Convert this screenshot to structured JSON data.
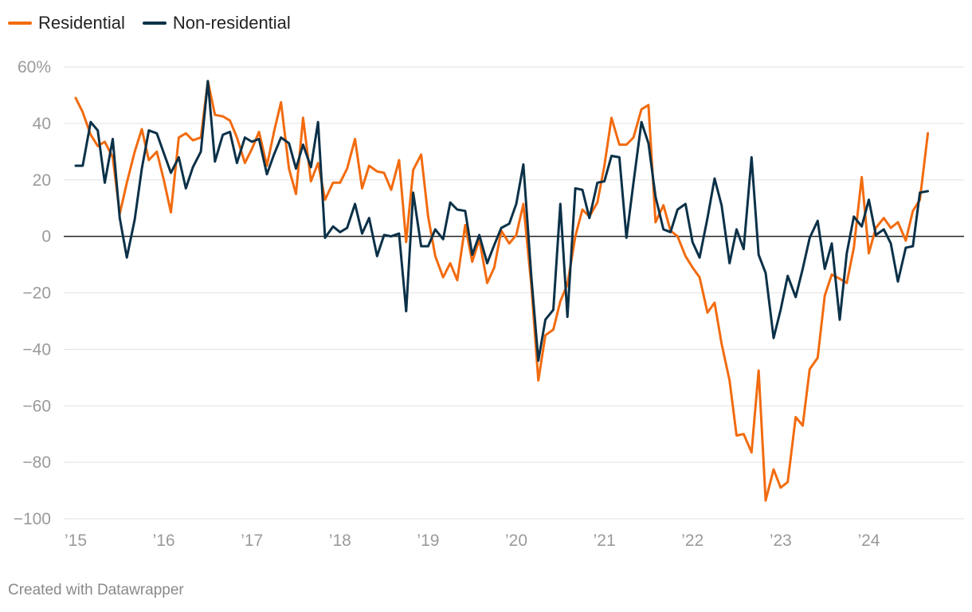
{
  "chart_data": {
    "type": "line",
    "title": "",
    "xlabel": "",
    "ylabel": "",
    "ylim": [
      -100,
      60
    ],
    "xlim": [
      2015,
      2024.9
    ],
    "y_ticks": [
      60,
      40,
      20,
      0,
      -20,
      -40,
      -60,
      -80,
      -100
    ],
    "y_tick_labels": [
      "60%",
      "40",
      "20",
      "0",
      "−20",
      "−40",
      "−60",
      "−80",
      "−100"
    ],
    "x_ticks": [
      2015,
      2016,
      2017,
      2018,
      2019,
      2020,
      2021,
      2022,
      2023,
      2024
    ],
    "x_tick_labels": [
      "’15",
      "’16",
      "’17",
      "’18",
      "’19",
      "’20",
      "’21",
      "’22",
      "’23",
      "’24"
    ],
    "grid": true,
    "legend": "top-left",
    "series": [
      {
        "name": "Residential",
        "color": "#f26b0f",
        "points": [
          [
            2015.0,
            49
          ],
          [
            2015.08,
            44
          ],
          [
            2015.17,
            36
          ],
          [
            2015.25,
            32
          ],
          [
            2015.33,
            33.5
          ],
          [
            2015.42,
            28
          ],
          [
            2015.5,
            8
          ],
          [
            2015.58,
            19
          ],
          [
            2015.67,
            30
          ],
          [
            2015.75,
            38
          ],
          [
            2015.83,
            27
          ],
          [
            2015.92,
            30
          ],
          [
            2016.0,
            20
          ],
          [
            2016.08,
            8.5
          ],
          [
            2016.17,
            35
          ],
          [
            2016.25,
            36.5
          ],
          [
            2016.33,
            34
          ],
          [
            2016.42,
            35
          ],
          [
            2016.5,
            55
          ],
          [
            2016.58,
            43
          ],
          [
            2016.67,
            42.5
          ],
          [
            2016.75,
            41
          ],
          [
            2016.83,
            35
          ],
          [
            2016.92,
            26
          ],
          [
            2017.0,
            31
          ],
          [
            2017.08,
            37
          ],
          [
            2017.17,
            25
          ],
          [
            2017.25,
            37
          ],
          [
            2017.33,
            47.5
          ],
          [
            2017.42,
            24
          ],
          [
            2017.5,
            15
          ],
          [
            2017.58,
            42
          ],
          [
            2017.67,
            19.5
          ],
          [
            2017.75,
            26
          ],
          [
            2017.83,
            13
          ],
          [
            2017.92,
            19
          ],
          [
            2018.0,
            19
          ],
          [
            2018.08,
            24
          ],
          [
            2018.17,
            34.5
          ],
          [
            2018.25,
            17
          ],
          [
            2018.33,
            25
          ],
          [
            2018.42,
            23
          ],
          [
            2018.5,
            22.5
          ],
          [
            2018.58,
            16.5
          ],
          [
            2018.67,
            27
          ],
          [
            2018.75,
            -2
          ],
          [
            2018.83,
            23.5
          ],
          [
            2018.92,
            29
          ],
          [
            2019.0,
            7
          ],
          [
            2019.08,
            -7
          ],
          [
            2019.17,
            -14.5
          ],
          [
            2019.25,
            -9.5
          ],
          [
            2019.33,
            -15.5
          ],
          [
            2019.42,
            4
          ],
          [
            2019.5,
            -9
          ],
          [
            2019.58,
            -1
          ],
          [
            2019.67,
            -16.5
          ],
          [
            2019.75,
            -11
          ],
          [
            2019.83,
            2
          ],
          [
            2019.92,
            -2.5
          ],
          [
            2020.0,
            0.5
          ],
          [
            2020.08,
            11.5
          ],
          [
            2020.17,
            -17
          ],
          [
            2020.25,
            -51
          ],
          [
            2020.33,
            -35
          ],
          [
            2020.42,
            -33
          ],
          [
            2020.5,
            -23
          ],
          [
            2020.58,
            -17
          ],
          [
            2020.67,
            0
          ],
          [
            2020.75,
            9.5
          ],
          [
            2020.83,
            7
          ],
          [
            2020.92,
            12
          ],
          [
            2021.0,
            25
          ],
          [
            2021.08,
            42
          ],
          [
            2021.17,
            32.5
          ],
          [
            2021.25,
            32.5
          ],
          [
            2021.33,
            35
          ],
          [
            2021.42,
            45
          ],
          [
            2021.5,
            46.5
          ],
          [
            2021.58,
            5
          ],
          [
            2021.67,
            11
          ],
          [
            2021.75,
            2
          ],
          [
            2021.83,
            0
          ],
          [
            2021.92,
            -7
          ],
          [
            2022.0,
            -11
          ],
          [
            2022.08,
            -14.5
          ],
          [
            2022.17,
            -27
          ],
          [
            2022.25,
            -23.5
          ],
          [
            2022.33,
            -38
          ],
          [
            2022.42,
            -51
          ],
          [
            2022.5,
            -70.5
          ],
          [
            2022.58,
            -70
          ],
          [
            2022.67,
            -76.5
          ],
          [
            2022.75,
            -47.5
          ],
          [
            2022.83,
            -93.5
          ],
          [
            2022.92,
            -82.5
          ],
          [
            2023.0,
            -89
          ],
          [
            2023.08,
            -87
          ],
          [
            2023.17,
            -64
          ],
          [
            2023.25,
            -67
          ],
          [
            2023.33,
            -47
          ],
          [
            2023.42,
            -43
          ],
          [
            2023.5,
            -21
          ],
          [
            2023.58,
            -13.5
          ],
          [
            2023.67,
            -15
          ],
          [
            2023.75,
            -16.5
          ],
          [
            2023.83,
            -4
          ],
          [
            2023.92,
            21
          ],
          [
            2024.0,
            -6
          ],
          [
            2024.08,
            3
          ],
          [
            2024.17,
            6.5
          ],
          [
            2024.25,
            3
          ],
          [
            2024.33,
            5
          ],
          [
            2024.42,
            -1.5
          ],
          [
            2024.5,
            9
          ],
          [
            2024.58,
            13
          ],
          [
            2024.67,
            36.5
          ]
        ]
      },
      {
        "name": "Non-residential",
        "color": "#0b3148",
        "points": [
          [
            2015.0,
            25
          ],
          [
            2015.08,
            25
          ],
          [
            2015.17,
            40.5
          ],
          [
            2015.25,
            37.5
          ],
          [
            2015.33,
            19
          ],
          [
            2015.42,
            34.5
          ],
          [
            2015.5,
            6.5
          ],
          [
            2015.58,
            -7.5
          ],
          [
            2015.67,
            6
          ],
          [
            2015.75,
            24
          ],
          [
            2015.83,
            37.5
          ],
          [
            2015.92,
            36.5
          ],
          [
            2016.0,
            29.5
          ],
          [
            2016.08,
            22.5
          ],
          [
            2016.17,
            28
          ],
          [
            2016.25,
            17
          ],
          [
            2016.33,
            24.5
          ],
          [
            2016.42,
            30
          ],
          [
            2016.5,
            55
          ],
          [
            2016.58,
            26.5
          ],
          [
            2016.67,
            36
          ],
          [
            2016.75,
            37
          ],
          [
            2016.83,
            26
          ],
          [
            2016.92,
            35
          ],
          [
            2017.0,
            33.5
          ],
          [
            2017.08,
            34.5
          ],
          [
            2017.17,
            22
          ],
          [
            2017.25,
            29
          ],
          [
            2017.33,
            35
          ],
          [
            2017.42,
            33
          ],
          [
            2017.5,
            24
          ],
          [
            2017.58,
            32.5
          ],
          [
            2017.67,
            24.5
          ],
          [
            2017.75,
            40.5
          ],
          [
            2017.83,
            -0.5
          ],
          [
            2017.92,
            3.5
          ],
          [
            2018.0,
            1.5
          ],
          [
            2018.08,
            3
          ],
          [
            2018.17,
            11.5
          ],
          [
            2018.25,
            1
          ],
          [
            2018.33,
            6.5
          ],
          [
            2018.42,
            -7
          ],
          [
            2018.5,
            0.5
          ],
          [
            2018.58,
            0
          ],
          [
            2018.67,
            1
          ],
          [
            2018.75,
            -26.5
          ],
          [
            2018.83,
            15.5
          ],
          [
            2018.92,
            -3.5
          ],
          [
            2019.0,
            -3.5
          ],
          [
            2019.08,
            2.5
          ],
          [
            2019.17,
            -1
          ],
          [
            2019.25,
            12
          ],
          [
            2019.33,
            9.5
          ],
          [
            2019.42,
            9
          ],
          [
            2019.5,
            -6.5
          ],
          [
            2019.58,
            0.5
          ],
          [
            2019.67,
            -9.5
          ],
          [
            2019.75,
            -3
          ],
          [
            2019.83,
            3
          ],
          [
            2019.92,
            4.5
          ],
          [
            2020.0,
            11.5
          ],
          [
            2020.08,
            25.5
          ],
          [
            2020.17,
            -14
          ],
          [
            2020.25,
            -44
          ],
          [
            2020.33,
            -29.5
          ],
          [
            2020.42,
            -26
          ],
          [
            2020.5,
            11.5
          ],
          [
            2020.58,
            -28.5
          ],
          [
            2020.67,
            17
          ],
          [
            2020.75,
            16.5
          ],
          [
            2020.83,
            6.5
          ],
          [
            2020.92,
            19
          ],
          [
            2021.0,
            19.5
          ],
          [
            2021.08,
            28.5
          ],
          [
            2021.17,
            28
          ],
          [
            2021.25,
            -0.5
          ],
          [
            2021.33,
            19
          ],
          [
            2021.42,
            40.5
          ],
          [
            2021.5,
            33
          ],
          [
            2021.58,
            14
          ],
          [
            2021.67,
            2.5
          ],
          [
            2021.75,
            1.5
          ],
          [
            2021.83,
            9.5
          ],
          [
            2021.92,
            11.5
          ],
          [
            2022.0,
            -2
          ],
          [
            2022.08,
            -7.5
          ],
          [
            2022.17,
            6.5
          ],
          [
            2022.25,
            20.5
          ],
          [
            2022.33,
            11
          ],
          [
            2022.42,
            -9.5
          ],
          [
            2022.5,
            2.5
          ],
          [
            2022.58,
            -4.5
          ],
          [
            2022.67,
            28
          ],
          [
            2022.75,
            -6.5
          ],
          [
            2022.83,
            -13
          ],
          [
            2022.92,
            -36
          ],
          [
            2023.0,
            -26
          ],
          [
            2023.08,
            -14
          ],
          [
            2023.17,
            -21.5
          ],
          [
            2023.25,
            -11.5
          ],
          [
            2023.33,
            -0.5
          ],
          [
            2023.42,
            5.5
          ],
          [
            2023.5,
            -11.5
          ],
          [
            2023.58,
            -2.5
          ],
          [
            2023.67,
            -29.5
          ],
          [
            2023.75,
            -6
          ],
          [
            2023.83,
            7
          ],
          [
            2023.92,
            3.5
          ],
          [
            2024.0,
            13
          ],
          [
            2024.08,
            0.5
          ],
          [
            2024.17,
            2.5
          ],
          [
            2024.25,
            -2.5
          ],
          [
            2024.33,
            -16
          ],
          [
            2024.42,
            -4
          ],
          [
            2024.5,
            -3.5
          ],
          [
            2024.58,
            15.5
          ],
          [
            2024.67,
            16
          ]
        ]
      }
    ]
  },
  "footer": {
    "credit": "Created with Datawrapper"
  }
}
